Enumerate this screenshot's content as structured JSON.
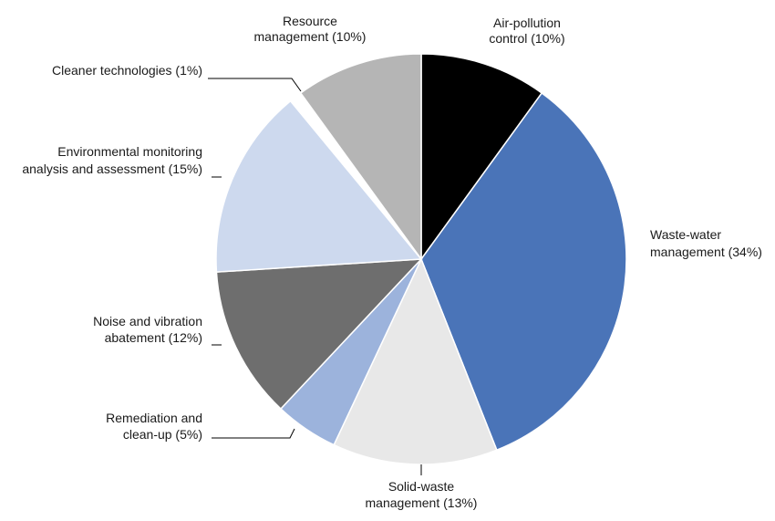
{
  "chart_data": {
    "type": "pie",
    "title": "",
    "start": "12 o'clock",
    "direction": "clockwise",
    "slices": [
      {
        "label": "Air-pollution control (10%)",
        "lines": [
          "Air-pollution",
          "control (10%)"
        ],
        "value": 10,
        "color": "#000000"
      },
      {
        "label": "Waste-water management (34%)",
        "lines": [
          "Waste-water",
          "management (34%)"
        ],
        "value": 34,
        "color": "#4a74b8"
      },
      {
        "label": "Solid-waste management (13%)",
        "lines": [
          "Solid-waste",
          "management (13%)"
        ],
        "value": 13,
        "color": "#e8e8e8"
      },
      {
        "label": "Remediation and clean-up (5%)",
        "lines": [
          "Remediation and",
          "clean-up (5%)"
        ],
        "value": 5,
        "color": "#9cb3dc"
      },
      {
        "label": "Noise and vibration abatement (12%)",
        "lines": [
          "Noise and vibration",
          "abatement (12%)"
        ],
        "value": 12,
        "color": "#6e6e6e"
      },
      {
        "label": "Environmental monitoring analysis and assessment (15%)",
        "lines": [
          "Environmental monitoring",
          "analysis and assessment (15%)"
        ],
        "value": 15,
        "color": "#cdd9ee"
      },
      {
        "label": "Cleaner technologies (1%)",
        "lines": [
          "Cleaner technologies (1%)"
        ],
        "value": 1,
        "color": "#ffffff"
      },
      {
        "label": "Resource management (10%)",
        "lines": [
          "Resource",
          "management (10%)"
        ],
        "value": 10,
        "color": "#b5b5b5"
      }
    ]
  }
}
